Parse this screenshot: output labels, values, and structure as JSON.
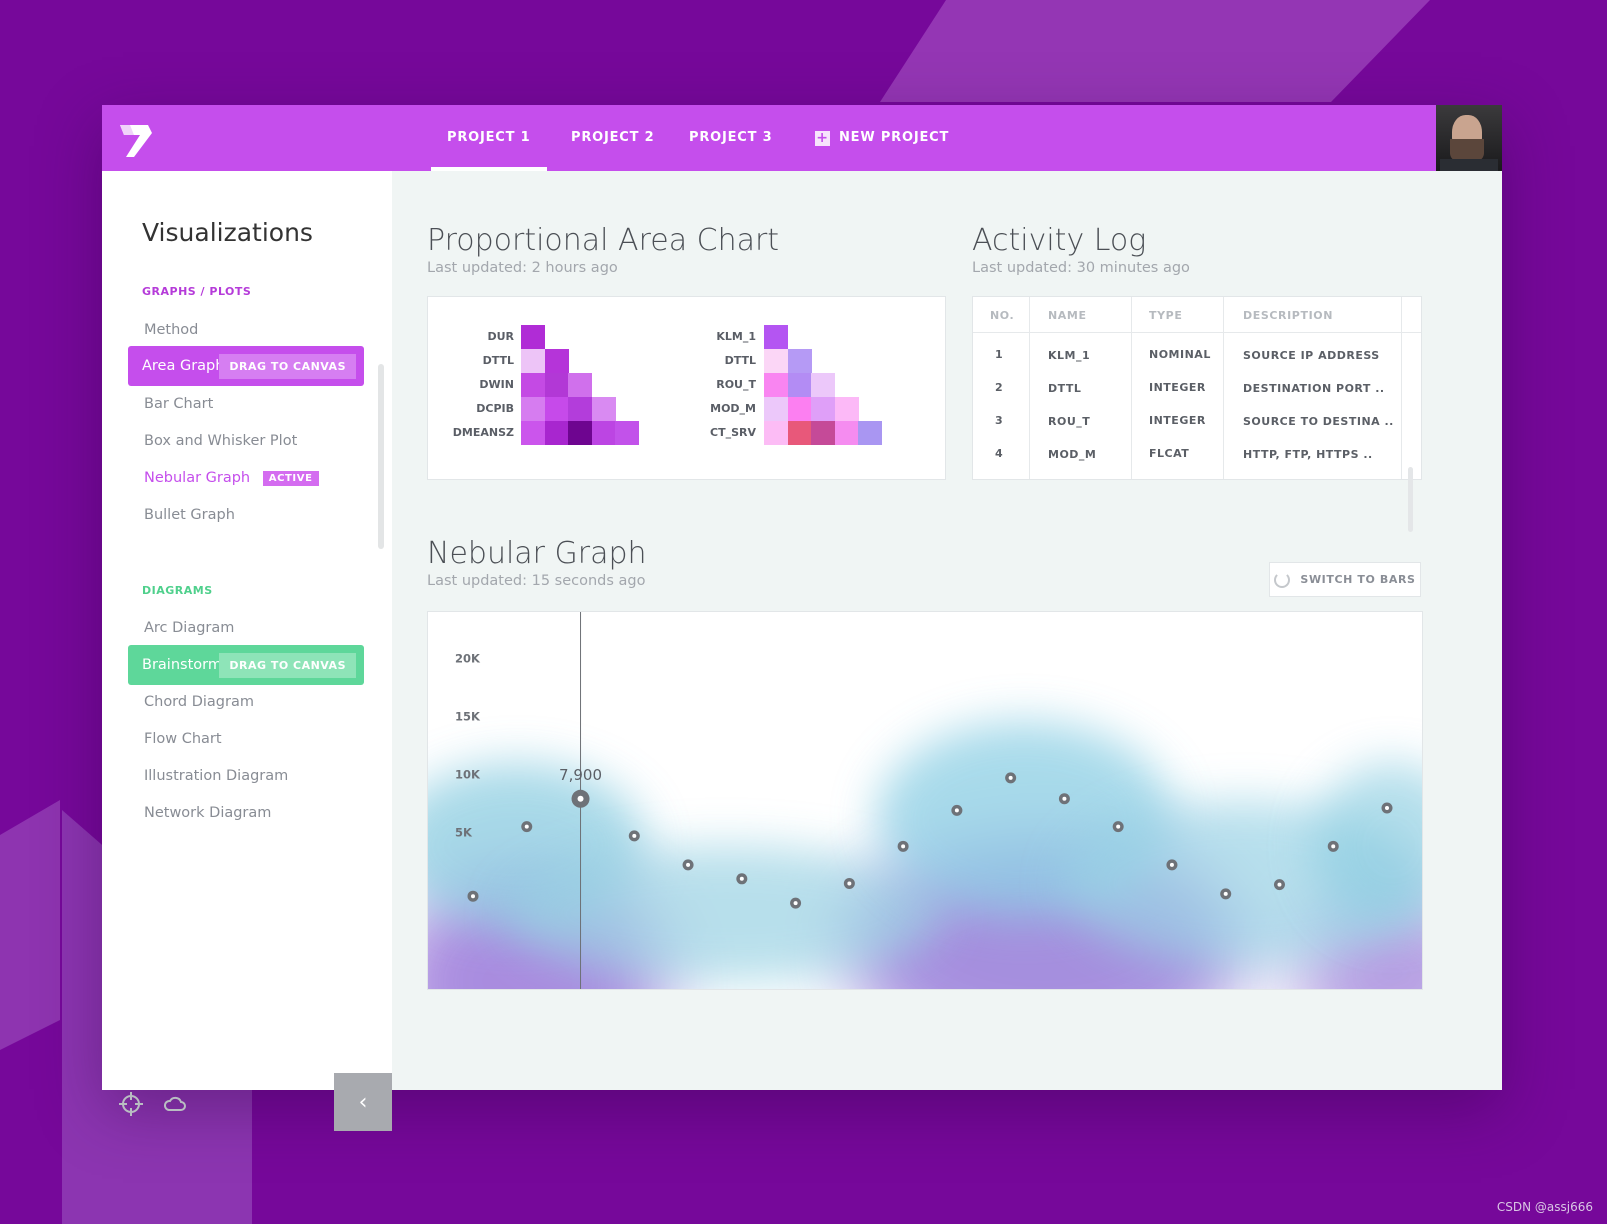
{
  "topbar": {
    "tabs": [
      {
        "label": "PROJECT 1",
        "active": true
      },
      {
        "label": "PROJECT 2",
        "active": false
      },
      {
        "label": "PROJECT 3",
        "active": false
      }
    ],
    "new_project_label": "NEW PROJECT",
    "plus_glyph": "+",
    "colors": {
      "topbar": "#c54eec",
      "background": "#76089a"
    }
  },
  "sidebar": {
    "title": "Visualizations",
    "graphs_section": "GRAPHS / PLOTS",
    "graphs_items": {
      "method": "Method",
      "area_graph": "Area Graph",
      "bar_chart": "Bar Chart",
      "box_whisker": "Box and Whisker Plot",
      "nebular_graph": "Nebular Graph",
      "bullet_graph": "Bullet Graph"
    },
    "drag_label": "DRAG TO CANVAS",
    "active_badge": "ACTIVE",
    "diagrams_section": "DIAGRAMS",
    "diagram_items": {
      "arc": "Arc Diagram",
      "brainstorm": "Brainstorm",
      "chord": "Chord Diagram",
      "flow": "Flow Chart",
      "illustration": "Illustration Diagram",
      "network": "Network Diagram"
    },
    "collapse_glyph": "‹",
    "colors": {
      "purple": "#c54eec",
      "green": "#5ed79a"
    }
  },
  "area_chart": {
    "title": "Proportional Area Chart",
    "updated": "Last updated: 2 hours ago",
    "left_labels": [
      "DUR",
      "DTTL",
      "DWIN",
      "DCPIB",
      "DMEANSZ"
    ],
    "right_labels": [
      "KLM_1",
      "DTTL",
      "ROU_T",
      "MOD_M",
      "CT_SRV"
    ],
    "left_colors": [
      [
        "#b02cd6"
      ],
      [
        "#edc4f7",
        "#b534d9"
      ],
      [
        "#c44ae4",
        "#b238d6",
        "#d070ec"
      ],
      [
        "#d67cf0",
        "#c64aea",
        "#b33ddb",
        "#d98af2"
      ],
      [
        "#cb55ec",
        "#a826cf",
        "#6e0590",
        "#bc45e3",
        "#c252ea"
      ]
    ],
    "right_colors": [
      [
        "#b455f2"
      ],
      [
        "#fbd6f6",
        "#b59af5"
      ],
      [
        "#f985f1",
        "#b38cf4",
        "#ecc8fa"
      ],
      [
        "#ecc8fa",
        "#fc7ff1",
        "#df9ff8",
        "#fcb9f7"
      ],
      [
        "#fcbcf5",
        "#e8587a",
        "#c54a98",
        "#f58cf0",
        "#a996f2"
      ]
    ]
  },
  "activity_log": {
    "title": "Activity Log",
    "updated": "Last updated: 30 minutes ago",
    "columns": [
      "NO.",
      "NAME",
      "TYPE",
      "DESCRIPTION"
    ],
    "rows": [
      {
        "no": "1",
        "name": "KLM_1",
        "type": "NOMINAL",
        "description": "SOURCE IP ADDRESS"
      },
      {
        "no": "2",
        "name": "DTTL",
        "type": "INTEGER",
        "description": "DESTINATION PORT .."
      },
      {
        "no": "3",
        "name": "ROU_T",
        "type": "INTEGER",
        "description": "SOURCE TO DESTINA .."
      },
      {
        "no": "4",
        "name": "MOD_M",
        "type": "FLCAT",
        "description": "HTTP, FTP, HTTPS .."
      }
    ]
  },
  "nebular": {
    "title": "Nebular Graph",
    "updated": "Last updated: 15 seconds ago",
    "switch_label": "SWITCH TO BARS"
  },
  "chart_data": {
    "type": "scatter",
    "title": "Nebular Graph",
    "yticks": [
      "20K",
      "15K",
      "10K",
      "5K"
    ],
    "ylim": [
      -8500,
      24000
    ],
    "x": [
      1,
      2,
      3,
      4,
      5,
      6,
      7,
      8,
      9,
      10,
      11,
      12,
      13,
      14,
      15,
      16,
      17,
      18
    ],
    "values": [
      -500,
      5500,
      7900,
      4700,
      2200,
      1000,
      -1100,
      600,
      3800,
      6900,
      9700,
      7900,
      5500,
      2200,
      -300,
      500,
      3800,
      7100
    ],
    "highlight_index": 2,
    "highlight_label": "7,900"
  },
  "watermark": "CSDN @assj666"
}
